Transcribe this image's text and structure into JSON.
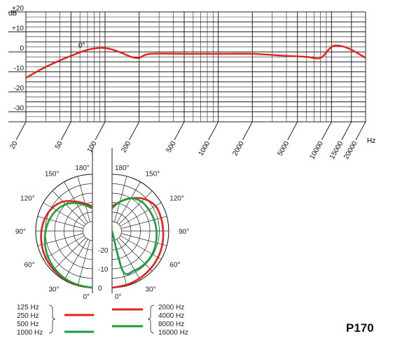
{
  "model": "P170",
  "chart_data": [
    {
      "type": "line",
      "xlabel": "Hz",
      "ylabel": "dB",
      "x_scale": "log",
      "xlim": [
        20,
        20000
      ],
      "ylim": [
        -35,
        20
      ],
      "grid": true,
      "x_ticks": [
        "20",
        "50",
        "100",
        "200",
        "500",
        "1000",
        "2000",
        "5000",
        "10000",
        "15000",
        "20000"
      ],
      "y_ticks": [
        "+20",
        "+10",
        "0",
        "-10",
        "-20",
        "-30"
      ],
      "annotation": "0°",
      "series": [
        {
          "color": "#e3201b",
          "x": [
            20,
            30,
            50,
            70,
            90,
            110,
            140,
            170,
            200,
            250,
            500,
            1000,
            2000,
            4000,
            6000,
            8000,
            10000,
            12000,
            15000,
            20000
          ],
          "y": [
            -13,
            -7.5,
            -2,
            1,
            2,
            1.5,
            -0.5,
            -2.5,
            -3,
            -1,
            -1,
            -1,
            -1,
            -2,
            -2.5,
            -3,
            2.5,
            3,
            1,
            -3
          ]
        }
      ]
    },
    {
      "type": "polar",
      "angle_labels_left": [
        "180°",
        "150°",
        "120°",
        "90°",
        "60°",
        "30°",
        "0°"
      ],
      "angle_labels_right": [
        "180°",
        "150°",
        "120°",
        "90°",
        "60°",
        "30°",
        "0°"
      ],
      "radial_labels": [
        "-20",
        "-10",
        "0"
      ],
      "rlim": [
        -30,
        0
      ],
      "legend": {
        "left_labels": [
          "125 Hz",
          "250 Hz",
          "500 Hz",
          "1000 Hz"
        ],
        "right_labels": [
          "2000 Hz",
          "4000 Hz",
          "8000 Hz",
          "16000 Hz"
        ]
      },
      "series": [
        {
          "side": "left",
          "color": "#e3201b",
          "angles": [
            0,
            15,
            30,
            45,
            60,
            75,
            90,
            105,
            120,
            135,
            150,
            165,
            180
          ],
          "values": [
            0,
            -0.3,
            -0.6,
            -1,
            -1.5,
            -2.2,
            -3,
            -4,
            -5.5,
            -8,
            -12,
            -15,
            -17
          ]
        },
        {
          "side": "left",
          "color": "#1a9e3a",
          "angles": [
            0,
            15,
            30,
            45,
            60,
            75,
            90,
            105,
            120,
            135,
            150,
            165,
            180
          ],
          "values": [
            0,
            -0.5,
            -1,
            -1.8,
            -2.8,
            -4,
            -5.2,
            -6.5,
            -8,
            -10,
            -13,
            -16,
            -18
          ]
        },
        {
          "side": "right",
          "color": "#e3201b",
          "angles": [
            0,
            15,
            30,
            45,
            60,
            75,
            90,
            105,
            120,
            135,
            150,
            165,
            180
          ],
          "values": [
            0,
            -0.5,
            -1,
            -1.5,
            -2,
            -2.5,
            -3,
            -3.2,
            -3.5,
            -6,
            -10,
            -14,
            -17
          ]
        },
        {
          "side": "right",
          "color": "#1a9e3a",
          "angles": [
            0,
            15,
            30,
            45,
            60,
            75,
            90,
            105,
            120,
            135,
            150,
            165,
            180
          ],
          "values": [
            -30,
            -8,
            -6,
            -5.5,
            -5.5,
            -6,
            -6.5,
            -7,
            -7.5,
            -8,
            -10,
            -14,
            -18
          ]
        }
      ]
    }
  ]
}
